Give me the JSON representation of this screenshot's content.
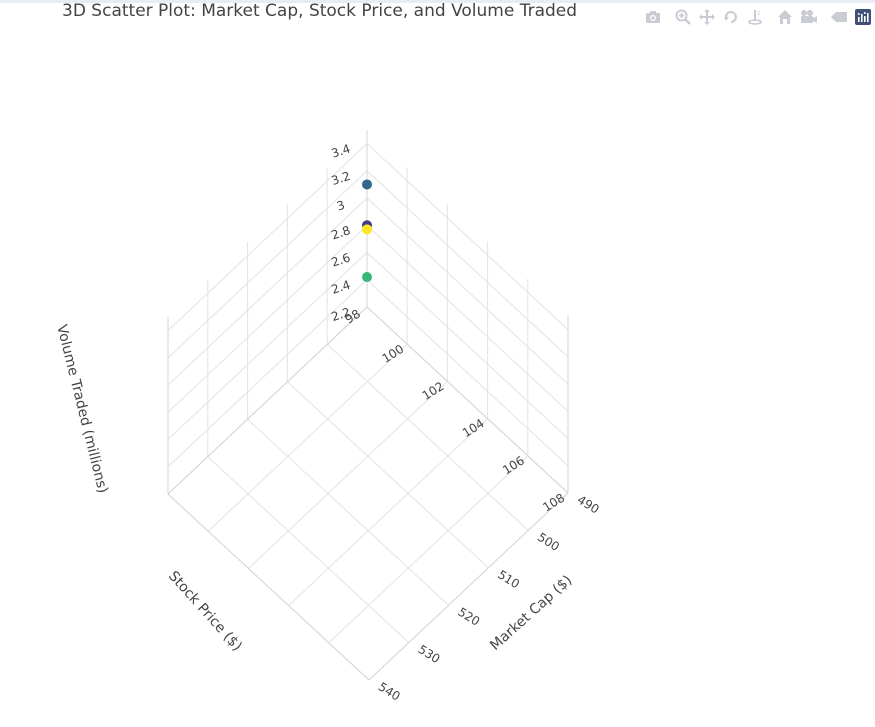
{
  "title": "3D Scatter Plot: Market Cap, Stock Price, and Volume Traded",
  "modebar": {
    "buttons": [
      "camera-icon",
      "zoom-icon",
      "pan-icon",
      "orbit-icon",
      "turntable-icon",
      "home-icon",
      "reset-camera-icon",
      "hover-icon",
      "plotly-logo-icon"
    ]
  },
  "chart_data": {
    "type": "scatter",
    "mode": "3d",
    "title": "3D Scatter Plot: Market Cap, Stock Price, and Volume Traded",
    "x_axis": {
      "label": "Market Cap ($)",
      "range": [
        490,
        540
      ],
      "ticks": [
        490,
        500,
        510,
        520,
        530,
        540
      ],
      "tick_labels": [
        "490",
        "500",
        "510",
        "520",
        "530",
        "540"
      ]
    },
    "y_axis": {
      "label": "Stock Price ($)",
      "range": [
        98,
        108
      ],
      "ticks": [
        98,
        100,
        102,
        104,
        106,
        108
      ],
      "tick_labels": [
        "98",
        "100",
        "102",
        "104",
        "106",
        "108"
      ]
    },
    "z_axis": {
      "label": "Volume Traded (millions)",
      "range": [
        2.2,
        3.5
      ],
      "ticks": [
        2.2,
        2.4,
        2.6,
        2.8,
        3.0,
        3.2,
        3.4
      ],
      "tick_labels": [
        "2.2",
        "2.4",
        "2.6",
        "2.8",
        "3",
        "3.2",
        "3.4"
      ]
    },
    "grid": true,
    "legend": "none",
    "points": [
      {
        "x": 490,
        "y": 98,
        "z": 3.1,
        "color": "#31688e"
      },
      {
        "x": 490,
        "y": 98,
        "z": 2.8,
        "color": "#443983"
      },
      {
        "x": 490,
        "y": 98,
        "z": 2.77,
        "color": "#fde725"
      },
      {
        "x": 490,
        "y": 98,
        "z": 2.42,
        "color": "#35b779"
      }
    ]
  }
}
